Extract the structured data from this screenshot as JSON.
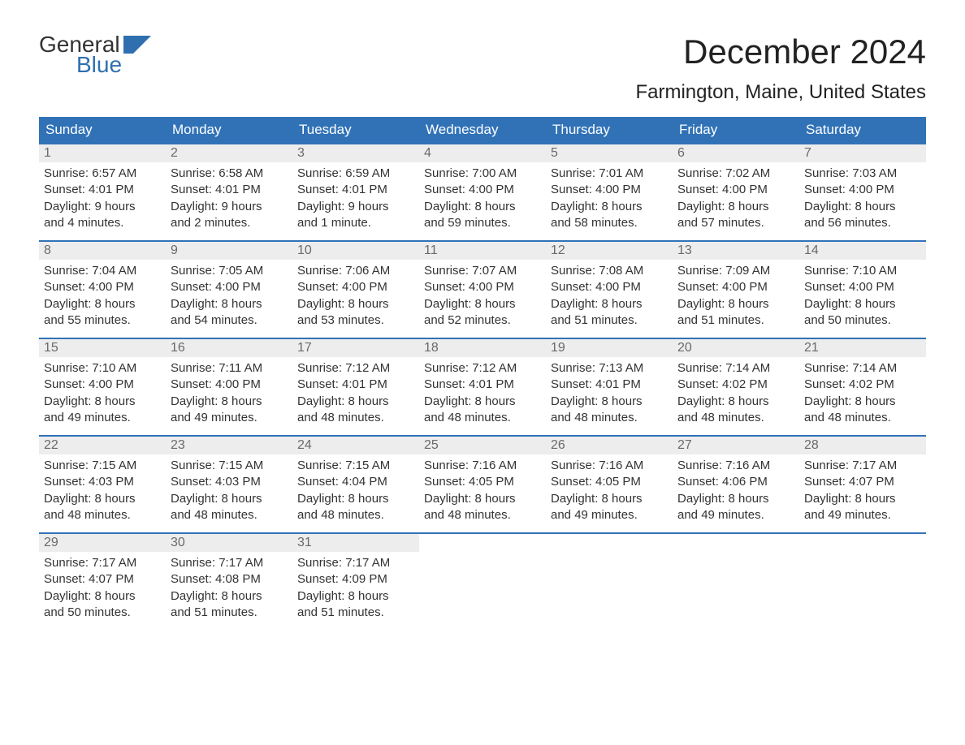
{
  "logo": {
    "line1": "General",
    "line2": "Blue",
    "flag_color": "#2f6fb0"
  },
  "title": "December 2024",
  "location": "Farmington, Maine, United States",
  "colors": {
    "header_bg": "#3172b7",
    "header_text": "#ffffff",
    "daynum_bg": "#ededed",
    "daynum_text": "#6a6a6a",
    "body_text": "#333333",
    "row_border": "#3172b7",
    "accent": "#2f6fb0"
  },
  "weekdays": [
    "Sunday",
    "Monday",
    "Tuesday",
    "Wednesday",
    "Thursday",
    "Friday",
    "Saturday"
  ],
  "weeks": [
    [
      {
        "num": "1",
        "sunrise": "Sunrise: 6:57 AM",
        "sunset": "Sunset: 4:01 PM",
        "d1": "Daylight: 9 hours",
        "d2": "and 4 minutes."
      },
      {
        "num": "2",
        "sunrise": "Sunrise: 6:58 AM",
        "sunset": "Sunset: 4:01 PM",
        "d1": "Daylight: 9 hours",
        "d2": "and 2 minutes."
      },
      {
        "num": "3",
        "sunrise": "Sunrise: 6:59 AM",
        "sunset": "Sunset: 4:01 PM",
        "d1": "Daylight: 9 hours",
        "d2": "and 1 minute."
      },
      {
        "num": "4",
        "sunrise": "Sunrise: 7:00 AM",
        "sunset": "Sunset: 4:00 PM",
        "d1": "Daylight: 8 hours",
        "d2": "and 59 minutes."
      },
      {
        "num": "5",
        "sunrise": "Sunrise: 7:01 AM",
        "sunset": "Sunset: 4:00 PM",
        "d1": "Daylight: 8 hours",
        "d2": "and 58 minutes."
      },
      {
        "num": "6",
        "sunrise": "Sunrise: 7:02 AM",
        "sunset": "Sunset: 4:00 PM",
        "d1": "Daylight: 8 hours",
        "d2": "and 57 minutes."
      },
      {
        "num": "7",
        "sunrise": "Sunrise: 7:03 AM",
        "sunset": "Sunset: 4:00 PM",
        "d1": "Daylight: 8 hours",
        "d2": "and 56 minutes."
      }
    ],
    [
      {
        "num": "8",
        "sunrise": "Sunrise: 7:04 AM",
        "sunset": "Sunset: 4:00 PM",
        "d1": "Daylight: 8 hours",
        "d2": "and 55 minutes."
      },
      {
        "num": "9",
        "sunrise": "Sunrise: 7:05 AM",
        "sunset": "Sunset: 4:00 PM",
        "d1": "Daylight: 8 hours",
        "d2": "and 54 minutes."
      },
      {
        "num": "10",
        "sunrise": "Sunrise: 7:06 AM",
        "sunset": "Sunset: 4:00 PM",
        "d1": "Daylight: 8 hours",
        "d2": "and 53 minutes."
      },
      {
        "num": "11",
        "sunrise": "Sunrise: 7:07 AM",
        "sunset": "Sunset: 4:00 PM",
        "d1": "Daylight: 8 hours",
        "d2": "and 52 minutes."
      },
      {
        "num": "12",
        "sunrise": "Sunrise: 7:08 AM",
        "sunset": "Sunset: 4:00 PM",
        "d1": "Daylight: 8 hours",
        "d2": "and 51 minutes."
      },
      {
        "num": "13",
        "sunrise": "Sunrise: 7:09 AM",
        "sunset": "Sunset: 4:00 PM",
        "d1": "Daylight: 8 hours",
        "d2": "and 51 minutes."
      },
      {
        "num": "14",
        "sunrise": "Sunrise: 7:10 AM",
        "sunset": "Sunset: 4:00 PM",
        "d1": "Daylight: 8 hours",
        "d2": "and 50 minutes."
      }
    ],
    [
      {
        "num": "15",
        "sunrise": "Sunrise: 7:10 AM",
        "sunset": "Sunset: 4:00 PM",
        "d1": "Daylight: 8 hours",
        "d2": "and 49 minutes."
      },
      {
        "num": "16",
        "sunrise": "Sunrise: 7:11 AM",
        "sunset": "Sunset: 4:00 PM",
        "d1": "Daylight: 8 hours",
        "d2": "and 49 minutes."
      },
      {
        "num": "17",
        "sunrise": "Sunrise: 7:12 AM",
        "sunset": "Sunset: 4:01 PM",
        "d1": "Daylight: 8 hours",
        "d2": "and 48 minutes."
      },
      {
        "num": "18",
        "sunrise": "Sunrise: 7:12 AM",
        "sunset": "Sunset: 4:01 PM",
        "d1": "Daylight: 8 hours",
        "d2": "and 48 minutes."
      },
      {
        "num": "19",
        "sunrise": "Sunrise: 7:13 AM",
        "sunset": "Sunset: 4:01 PM",
        "d1": "Daylight: 8 hours",
        "d2": "and 48 minutes."
      },
      {
        "num": "20",
        "sunrise": "Sunrise: 7:14 AM",
        "sunset": "Sunset: 4:02 PM",
        "d1": "Daylight: 8 hours",
        "d2": "and 48 minutes."
      },
      {
        "num": "21",
        "sunrise": "Sunrise: 7:14 AM",
        "sunset": "Sunset: 4:02 PM",
        "d1": "Daylight: 8 hours",
        "d2": "and 48 minutes."
      }
    ],
    [
      {
        "num": "22",
        "sunrise": "Sunrise: 7:15 AM",
        "sunset": "Sunset: 4:03 PM",
        "d1": "Daylight: 8 hours",
        "d2": "and 48 minutes."
      },
      {
        "num": "23",
        "sunrise": "Sunrise: 7:15 AM",
        "sunset": "Sunset: 4:03 PM",
        "d1": "Daylight: 8 hours",
        "d2": "and 48 minutes."
      },
      {
        "num": "24",
        "sunrise": "Sunrise: 7:15 AM",
        "sunset": "Sunset: 4:04 PM",
        "d1": "Daylight: 8 hours",
        "d2": "and 48 minutes."
      },
      {
        "num": "25",
        "sunrise": "Sunrise: 7:16 AM",
        "sunset": "Sunset: 4:05 PM",
        "d1": "Daylight: 8 hours",
        "d2": "and 48 minutes."
      },
      {
        "num": "26",
        "sunrise": "Sunrise: 7:16 AM",
        "sunset": "Sunset: 4:05 PM",
        "d1": "Daylight: 8 hours",
        "d2": "and 49 minutes."
      },
      {
        "num": "27",
        "sunrise": "Sunrise: 7:16 AM",
        "sunset": "Sunset: 4:06 PM",
        "d1": "Daylight: 8 hours",
        "d2": "and 49 minutes."
      },
      {
        "num": "28",
        "sunrise": "Sunrise: 7:17 AM",
        "sunset": "Sunset: 4:07 PM",
        "d1": "Daylight: 8 hours",
        "d2": "and 49 minutes."
      }
    ],
    [
      {
        "num": "29",
        "sunrise": "Sunrise: 7:17 AM",
        "sunset": "Sunset: 4:07 PM",
        "d1": "Daylight: 8 hours",
        "d2": "and 50 minutes."
      },
      {
        "num": "30",
        "sunrise": "Sunrise: 7:17 AM",
        "sunset": "Sunset: 4:08 PM",
        "d1": "Daylight: 8 hours",
        "d2": "and 51 minutes."
      },
      {
        "num": "31",
        "sunrise": "Sunrise: 7:17 AM",
        "sunset": "Sunset: 4:09 PM",
        "d1": "Daylight: 8 hours",
        "d2": "and 51 minutes."
      },
      null,
      null,
      null,
      null
    ]
  ]
}
